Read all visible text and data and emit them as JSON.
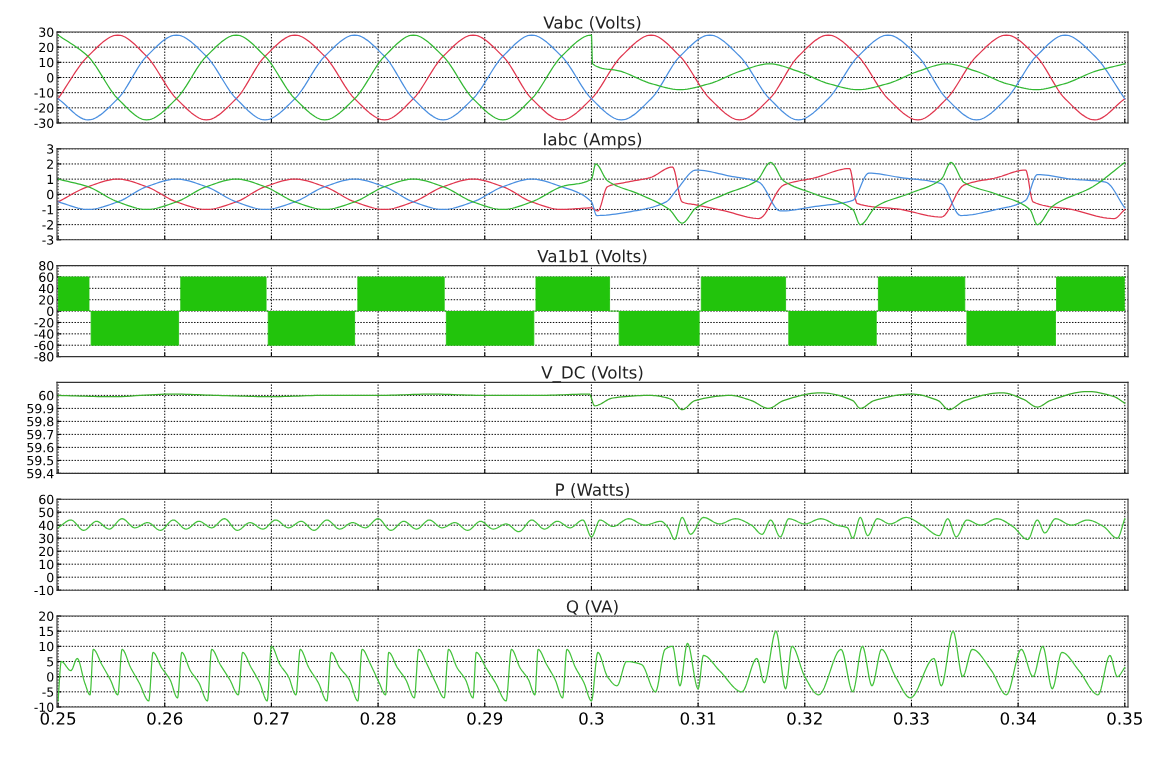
{
  "chart_data": [
    {
      "type": "line",
      "title": "Vabc (Volts)",
      "xlim": [
        0.2499,
        0.3503
      ],
      "xticks": [
        0.25,
        0.26,
        0.27,
        0.28,
        0.29,
        0.3,
        0.31,
        0.32,
        0.33,
        0.34,
        0.35
      ],
      "ylim": [
        -30,
        30
      ],
      "yticks": [
        -30,
        -20,
        -10,
        0,
        10,
        20,
        30
      ],
      "grid": true,
      "tick_labels": "y",
      "series": [
        {
          "color": "#e0364e",
          "x": [
            0.25,
            0.2528,
            0.2556,
            0.2583,
            0.2611,
            0.2639,
            0.2667,
            0.2694,
            0.2722,
            0.275,
            0.2778,
            0.2806,
            0.2833,
            0.2861,
            0.2889,
            0.2917,
            0.2944,
            0.2972,
            0.3,
            0.3028,
            0.3056,
            0.3083,
            0.3111,
            0.3139,
            0.3167,
            0.3194,
            0.3222,
            0.325,
            0.3278,
            0.3306,
            0.3333,
            0.3361,
            0.3389,
            0.3417,
            0.3444,
            0.3472,
            0.35
          ],
          "values": [
            -14,
            14,
            28,
            14,
            -14,
            -28,
            -14,
            14,
            28,
            14,
            -14,
            -28,
            -14,
            14,
            28,
            14,
            -14,
            -28,
            -14,
            14,
            28,
            14,
            -14,
            -28,
            -14,
            14,
            28,
            14,
            -14,
            -28,
            -14,
            14,
            28,
            14,
            -14,
            -28,
            -14
          ]
        },
        {
          "color": "#4a8fe0",
          "x": [
            0.25,
            0.2528,
            0.2556,
            0.2583,
            0.2611,
            0.2639,
            0.2667,
            0.2694,
            0.2722,
            0.275,
            0.2778,
            0.2806,
            0.2833,
            0.2861,
            0.2889,
            0.2917,
            0.2944,
            0.2972,
            0.3,
            0.3028,
            0.3056,
            0.3083,
            0.3111,
            0.3139,
            0.3167,
            0.3194,
            0.3222,
            0.325,
            0.3278,
            0.3306,
            0.3333,
            0.3361,
            0.3389,
            0.3417,
            0.3444,
            0.3472,
            0.35
          ],
          "values": [
            -14,
            -28,
            -14,
            14,
            28,
            14,
            -14,
            -28,
            -14,
            14,
            28,
            14,
            -14,
            -28,
            -14,
            14,
            28,
            14,
            -14,
            -28,
            -14,
            14,
            28,
            14,
            -14,
            -28,
            -14,
            14,
            28,
            14,
            -14,
            -28,
            -14,
            14,
            28,
            14,
            -14
          ]
        },
        {
          "color": "#33b833",
          "x": [
            0.25,
            0.2528,
            0.2556,
            0.2583,
            0.2611,
            0.2639,
            0.2667,
            0.2694,
            0.2722,
            0.275,
            0.2778,
            0.2806,
            0.2833,
            0.2861,
            0.2889,
            0.2917,
            0.2944,
            0.2972,
            0.3,
            0.3001,
            0.3028,
            0.3056,
            0.3083,
            0.3111,
            0.3139,
            0.3167,
            0.3194,
            0.3222,
            0.325,
            0.3278,
            0.3306,
            0.3333,
            0.3361,
            0.3389,
            0.3417,
            0.3444,
            0.3472,
            0.35
          ],
          "values": [
            28,
            14,
            -14,
            -28,
            -14,
            14,
            28,
            14,
            -14,
            -28,
            -14,
            14,
            28,
            14,
            -14,
            -28,
            -14,
            14,
            28,
            9,
            4,
            -4,
            -8,
            -4,
            4,
            9,
            4,
            -4,
            -8,
            -4,
            4,
            9,
            4,
            -4,
            -8,
            -4,
            4,
            9
          ]
        }
      ]
    },
    {
      "type": "line",
      "title": "Iabc (Amps)",
      "xlim": [
        0.2499,
        0.3503
      ],
      "xticks": [
        0.25,
        0.26,
        0.27,
        0.28,
        0.29,
        0.3,
        0.31,
        0.32,
        0.33,
        0.34,
        0.35
      ],
      "ylim": [
        -3,
        3
      ],
      "yticks": [
        -3,
        -2,
        -1,
        0,
        1,
        2,
        3
      ],
      "grid": true,
      "tick_labels": "y",
      "series": [
        {
          "color": "#e0364e",
          "x": [
            0.25,
            0.2528,
            0.2556,
            0.2583,
            0.2611,
            0.2639,
            0.2667,
            0.2694,
            0.2722,
            0.275,
            0.2778,
            0.2806,
            0.2833,
            0.2861,
            0.2889,
            0.2917,
            0.2944,
            0.2972,
            0.3,
            0.3006,
            0.3015,
            0.3033,
            0.3055,
            0.3076,
            0.3085,
            0.3098,
            0.3125,
            0.3157,
            0.318,
            0.321,
            0.3242,
            0.3249,
            0.329,
            0.3328,
            0.3349,
            0.338,
            0.3407,
            0.3414,
            0.345,
            0.349,
            0.35
          ],
          "values": [
            -0.5,
            0.5,
            1,
            0.5,
            -0.5,
            -1,
            -0.5,
            0.5,
            1,
            0.5,
            -0.5,
            -1,
            -0.5,
            0.5,
            1,
            0.5,
            -0.5,
            -1,
            -0.9,
            -1.1,
            0.5,
            0.8,
            1.1,
            1.8,
            -0.5,
            -0.7,
            -1.1,
            -1.6,
            0.6,
            1.1,
            1.7,
            -0.6,
            -1.0,
            -1.5,
            0.6,
            1.1,
            1.6,
            -0.5,
            -1.0,
            -1.6,
            -1.0
          ]
        },
        {
          "color": "#4a8fe0",
          "x": [
            0.25,
            0.2528,
            0.2556,
            0.2583,
            0.2611,
            0.2639,
            0.2667,
            0.2694,
            0.2722,
            0.275,
            0.2778,
            0.2806,
            0.2833,
            0.2861,
            0.2889,
            0.2917,
            0.2944,
            0.2972,
            0.3,
            0.3005,
            0.304,
            0.307,
            0.308,
            0.3098,
            0.313,
            0.3157,
            0.3177,
            0.321,
            0.3245,
            0.326,
            0.329,
            0.3328,
            0.3346,
            0.338,
            0.3407,
            0.3418,
            0.345,
            0.3482,
            0.35
          ],
          "values": [
            -0.5,
            -1,
            -0.5,
            0.5,
            1,
            0.5,
            -0.5,
            -1,
            -0.5,
            0.5,
            1,
            0.5,
            -0.5,
            -1,
            -0.5,
            0.5,
            1,
            0.5,
            -0.5,
            -1.4,
            -1.1,
            -0.5,
            0.3,
            1.6,
            1.2,
            0.8,
            -1.1,
            -0.8,
            -0.4,
            1.4,
            1.1,
            0.7,
            -1.4,
            -1.0,
            -0.4,
            1.3,
            1.0,
            0.8,
            -0.9
          ]
        },
        {
          "color": "#33b833",
          "x": [
            0.25,
            0.2528,
            0.2556,
            0.2583,
            0.2611,
            0.2639,
            0.2667,
            0.2694,
            0.2722,
            0.275,
            0.2778,
            0.2806,
            0.2833,
            0.2861,
            0.2889,
            0.2917,
            0.2944,
            0.2972,
            0.3,
            0.3004,
            0.3015,
            0.3045,
            0.3073,
            0.3085,
            0.3098,
            0.3125,
            0.3155,
            0.3168,
            0.318,
            0.321,
            0.3245,
            0.3252,
            0.3267,
            0.33,
            0.3328,
            0.3337,
            0.3349,
            0.338,
            0.3411,
            0.3418,
            0.3432,
            0.347,
            0.35
          ],
          "values": [
            1,
            0.5,
            -0.5,
            -1,
            -0.5,
            0.5,
            1,
            0.5,
            -0.5,
            -1,
            -0.5,
            0.5,
            1,
            0.5,
            -0.5,
            -1,
            -0.5,
            0.5,
            1.0,
            2.0,
            0.9,
            0.0,
            -1.0,
            -1.9,
            -0.9,
            0.0,
            0.9,
            2.1,
            0.9,
            0.0,
            -1.0,
            -2.0,
            -0.8,
            0.1,
            1.0,
            2.1,
            0.8,
            0.0,
            -1.0,
            -2.0,
            -0.8,
            0.5,
            2.1
          ]
        }
      ]
    },
    {
      "type": "area",
      "title": "Va1b1 (Volts)",
      "xlim": [
        0.2499,
        0.3503
      ],
      "xticks": [
        0.25,
        0.26,
        0.27,
        0.28,
        0.29,
        0.3,
        0.31,
        0.32,
        0.33,
        0.34,
        0.35
      ],
      "ylim": [
        -80,
        80
      ],
      "yticks": [
        -80,
        -60,
        -40,
        -20,
        0,
        20,
        40,
        60,
        80
      ],
      "grid": true,
      "tick_labels": "y",
      "series": [
        {
          "color": "#22c40c",
          "x": [
            0.25,
            0.2529,
            0.2529,
            0.2531,
            0.2531,
            0.2613,
            0.2613,
            0.2615,
            0.2615,
            0.2695,
            0.2695,
            0.2697,
            0.2697,
            0.2778,
            0.2778,
            0.2781,
            0.2781,
            0.2862,
            0.2862,
            0.2864,
            0.2864,
            0.2946,
            0.2946,
            0.2948,
            0.2948,
            0.3017,
            0.3017,
            0.3026,
            0.3026,
            0.3101,
            0.3101,
            0.3103,
            0.3103,
            0.3182,
            0.3182,
            0.3185,
            0.3185,
            0.3267,
            0.3267,
            0.3269,
            0.3269,
            0.335,
            0.335,
            0.3352,
            0.3352,
            0.3435,
            0.3435,
            0.3436,
            0.3436,
            0.35
          ],
          "values": [
            60,
            60,
            0,
            0,
            -60,
            -60,
            0,
            0,
            60,
            60,
            0,
            0,
            -60,
            -60,
            0,
            0,
            60,
            60,
            0,
            0,
            -60,
            -60,
            0,
            0,
            60,
            60,
            0,
            0,
            -60,
            -60,
            0,
            0,
            60,
            60,
            0,
            0,
            -60,
            -60,
            0,
            0,
            60,
            60,
            0,
            0,
            -60,
            -60,
            0,
            0,
            60,
            60
          ]
        }
      ]
    },
    {
      "type": "line",
      "title": "V_DC (Volts)",
      "xlim": [
        0.2499,
        0.3503
      ],
      "xticks": [
        0.25,
        0.26,
        0.27,
        0.28,
        0.29,
        0.3,
        0.31,
        0.32,
        0.33,
        0.34,
        0.35
      ],
      "ylim": [
        59.4,
        60.1
      ],
      "yticks": [
        59.4,
        59.5,
        59.6,
        59.7,
        59.8,
        59.9,
        60
      ],
      "grid": true,
      "tick_labels": "y",
      "series": [
        {
          "color": "#3cae2c",
          "x": [
            0.25,
            0.255,
            0.2605,
            0.265,
            0.27,
            0.275,
            0.28,
            0.285,
            0.29,
            0.295,
            0.2998,
            0.3003,
            0.302,
            0.3055,
            0.3075,
            0.3085,
            0.3097,
            0.313,
            0.315,
            0.3166,
            0.318,
            0.3215,
            0.3245,
            0.3252,
            0.3265,
            0.33,
            0.3325,
            0.3335,
            0.335,
            0.3385,
            0.3405,
            0.3418,
            0.343,
            0.3465,
            0.349,
            0.35
          ],
          "values": [
            60,
            59.99,
            60.01,
            60,
            59.99,
            60,
            60,
            60.01,
            60,
            60,
            60.01,
            59.92,
            59.98,
            60,
            59.97,
            59.89,
            59.96,
            60,
            59.96,
            59.9,
            59.96,
            60.02,
            59.96,
            59.9,
            59.96,
            60.01,
            59.96,
            59.89,
            59.96,
            60.02,
            59.97,
            59.91,
            59.96,
            60.03,
            59.99,
            59.94
          ]
        }
      ]
    },
    {
      "type": "line",
      "title": "P (Watts)",
      "xlim": [
        0.2499,
        0.3503
      ],
      "xticks": [
        0.25,
        0.26,
        0.27,
        0.28,
        0.29,
        0.3,
        0.31,
        0.32,
        0.33,
        0.34,
        0.35
      ],
      "ylim": [
        -10,
        60
      ],
      "yticks": [
        -10,
        0,
        10,
        20,
        30,
        40,
        50,
        60
      ],
      "grid": true,
      "tick_labels": "y",
      "series": [
        {
          "color": "#44c23c",
          "x": [
            0.25,
            0.2512,
            0.2524,
            0.2536,
            0.2548,
            0.256,
            0.2572,
            0.2584,
            0.2596,
            0.2608,
            0.262,
            0.2632,
            0.2644,
            0.2656,
            0.2668,
            0.268,
            0.2692,
            0.2704,
            0.2716,
            0.2728,
            0.274,
            0.2752,
            0.2764,
            0.2776,
            0.2788,
            0.28,
            0.2812,
            0.2824,
            0.2836,
            0.2848,
            0.286,
            0.2872,
            0.2884,
            0.2896,
            0.2908,
            0.292,
            0.2932,
            0.2944,
            0.2956,
            0.2968,
            0.298,
            0.2992,
            0.3,
            0.3008,
            0.302,
            0.3035,
            0.305,
            0.3065,
            0.3072,
            0.3078,
            0.3085,
            0.3093,
            0.3105,
            0.312,
            0.3135,
            0.315,
            0.316,
            0.3168,
            0.3177,
            0.3185,
            0.32,
            0.3215,
            0.323,
            0.324,
            0.3245,
            0.3252,
            0.3259,
            0.3268,
            0.328,
            0.3295,
            0.331,
            0.3326,
            0.3334,
            0.3342,
            0.3352,
            0.3365,
            0.338,
            0.3395,
            0.3409,
            0.3418,
            0.3425,
            0.3435,
            0.345,
            0.3465,
            0.348,
            0.3493,
            0.35
          ],
          "values": [
            38,
            44,
            36,
            43,
            37,
            45,
            38,
            42,
            36,
            44,
            37,
            43,
            38,
            45,
            36,
            42,
            37,
            44,
            38,
            43,
            36,
            44,
            37,
            42,
            38,
            45,
            36,
            43,
            37,
            44,
            38,
            42,
            36,
            43,
            37,
            41,
            35,
            44,
            37,
            43,
            38,
            44,
            31,
            44,
            39,
            45,
            40,
            43,
            38,
            29,
            46,
            33,
            46,
            41,
            45,
            40,
            33,
            44,
            31,
            45,
            41,
            45,
            40,
            38,
            30,
            46,
            32,
            45,
            41,
            46,
            40,
            32,
            45,
            31,
            44,
            40,
            45,
            39,
            29,
            44,
            34,
            45,
            40,
            44,
            39,
            30,
            45
          ]
        }
      ]
    },
    {
      "type": "line",
      "title": "Q (VA)",
      "xlim": [
        0.2499,
        0.3503
      ],
      "xticks": [
        0.25,
        0.26,
        0.27,
        0.28,
        0.29,
        0.3,
        0.31,
        0.32,
        0.33,
        0.34,
        0.35
      ],
      "ylim": [
        -10,
        20
      ],
      "yticks": [
        -10,
        -5,
        0,
        5,
        10,
        15,
        20
      ],
      "grid": true,
      "series": [
        {
          "color": "#44c23c",
          "x": [
            0.25,
            0.2503,
            0.2512,
            0.2518,
            0.2525,
            0.253,
            0.2533,
            0.2541,
            0.2549,
            0.2556,
            0.256,
            0.2568,
            0.2576,
            0.2585,
            0.2589,
            0.2597,
            0.2605,
            0.2612,
            0.2616,
            0.2624,
            0.2632,
            0.264,
            0.2644,
            0.2652,
            0.2661,
            0.2669,
            0.2673,
            0.2681,
            0.2689,
            0.2696,
            0.27,
            0.2708,
            0.2716,
            0.2723,
            0.2727,
            0.2735,
            0.2744,
            0.2752,
            0.2756,
            0.2764,
            0.2773,
            0.2781,
            0.2785,
            0.2793,
            0.2801,
            0.2807,
            0.281,
            0.2818,
            0.2826,
            0.2834,
            0.2838,
            0.2846,
            0.2854,
            0.2862,
            0.2866,
            0.2874,
            0.2882,
            0.2889,
            0.2892,
            0.2901,
            0.291,
            0.292,
            0.2925,
            0.2933,
            0.2941,
            0.2947,
            0.295,
            0.2958,
            0.2966,
            0.2973,
            0.2977,
            0.2985,
            0.2993,
            0.3,
            0.3006,
            0.3015,
            0.3024,
            0.3033,
            0.3047,
            0.306,
            0.3069,
            0.3076,
            0.3083,
            0.309,
            0.31,
            0.3105,
            0.312,
            0.3141,
            0.3155,
            0.3162,
            0.3173,
            0.3182,
            0.3188,
            0.32,
            0.3213,
            0.3234,
            0.3245,
            0.3254,
            0.3263,
            0.3272,
            0.3285,
            0.3299,
            0.3321,
            0.3328,
            0.3339,
            0.3348,
            0.3357,
            0.3375,
            0.3389,
            0.3403,
            0.3414,
            0.3423,
            0.3432,
            0.3441,
            0.3457,
            0.3475,
            0.3486,
            0.3493,
            0.35
          ],
          "values": [
            -8,
            5,
            2,
            6,
            -2,
            -6,
            9,
            4,
            -1,
            -6,
            9,
            3,
            -2,
            -8,
            8,
            3,
            -1,
            -7,
            8,
            2,
            -2,
            -8,
            9,
            4,
            -1,
            -6,
            8,
            3,
            -2,
            -8,
            10,
            4,
            0,
            -6,
            9,
            3,
            -2,
            -8,
            8,
            3,
            -1,
            -8,
            9,
            4,
            -2,
            -6,
            8,
            3,
            -1,
            -7,
            9,
            4,
            -2,
            -7,
            9,
            3,
            -1,
            -7,
            8,
            3,
            -2,
            -8,
            9,
            3,
            -1,
            -6,
            9,
            4,
            -1,
            -7,
            9,
            3,
            -2,
            -8,
            8,
            0,
            -3,
            5,
            4,
            -5,
            9,
            10,
            -3,
            11,
            -4,
            7,
            2,
            -5,
            6,
            -2,
            15,
            -4,
            10,
            0,
            -6,
            9,
            -5,
            10,
            -3,
            9,
            0,
            -7,
            6,
            -3,
            15,
            0,
            9,
            2,
            -6,
            9,
            0,
            10,
            -4,
            8,
            2,
            -6,
            7,
            0,
            3
          ]
        }
      ]
    }
  ]
}
